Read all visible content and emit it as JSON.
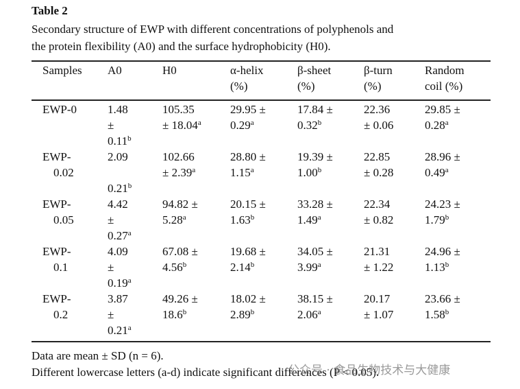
{
  "table_label": "Table 2",
  "caption": [
    "Secondary structure of EWP with different concentrations of polyphenols and",
    "the protein flexibility (A0) and the surface hydrophobicity (H0)."
  ],
  "table": {
    "header": [
      [
        "Samples"
      ],
      [
        "A0"
      ],
      [
        "H0"
      ],
      [
        "α-helix",
        "(%)"
      ],
      [
        "β-sheet",
        "(%)"
      ],
      [
        "β-turn",
        "(%)"
      ],
      [
        "Random",
        "coil (%)"
      ]
    ],
    "rows": [
      [
        {
          "lines": [
            "EWP-0"
          ]
        },
        {
          "lines": [
            "1.48",
            "±",
            "0.11"
          ],
          "sup": "b"
        },
        {
          "lines": [
            "105.35",
            "± 18.04"
          ],
          "sup": "a"
        },
        {
          "lines": [
            "29.95 ±",
            "0.29"
          ],
          "sup": "a"
        },
        {
          "lines": [
            "17.84 ±",
            "0.32"
          ],
          "sup": "b"
        },
        {
          "lines": [
            "22.36",
            "± 0.06"
          ]
        },
        {
          "lines": [
            "29.85 ±",
            "0.28"
          ],
          "sup": "a"
        }
      ],
      [
        {
          "lines": [
            "EWP-",
            "0.02"
          ]
        },
        {
          "lines": [
            "2.09",
            "0.21"
          ],
          "sup": "b"
        },
        {
          "lines": [
            "102.66",
            "± 2.39"
          ],
          "sup": "a"
        },
        {
          "lines": [
            "28.80 ±",
            "1.15"
          ],
          "sup": "a"
        },
        {
          "lines": [
            "19.39 ±",
            "1.00"
          ],
          "sup": "b"
        },
        {
          "lines": [
            "22.85",
            "± 0.28"
          ]
        },
        {
          "lines": [
            "28.96 ±",
            "0.49"
          ],
          "sup": "a"
        }
      ],
      [
        {
          "lines": [
            "EWP-",
            "0.05"
          ]
        },
        {
          "lines": [
            "4.42",
            "±",
            "0.27"
          ],
          "sup": "a"
        },
        {
          "lines": [
            "94.82 ±",
            "5.28"
          ],
          "sup": "a"
        },
        {
          "lines": [
            "20.15 ±",
            "1.63"
          ],
          "sup": "b"
        },
        {
          "lines": [
            "33.28 ±",
            "1.49"
          ],
          "sup": "a"
        },
        {
          "lines": [
            "22.34",
            "± 0.82"
          ]
        },
        {
          "lines": [
            "24.23 ±",
            "1.79"
          ],
          "sup": "b"
        }
      ],
      [
        {
          "lines": [
            "EWP-",
            "0.1"
          ]
        },
        {
          "lines": [
            "4.09",
            "±",
            "0.19"
          ],
          "sup": "a"
        },
        {
          "lines": [
            "67.08 ±",
            "4.56"
          ],
          "sup": "b"
        },
        {
          "lines": [
            "19.68 ±",
            "2.14"
          ],
          "sup": "b"
        },
        {
          "lines": [
            "34.05 ±",
            "3.99"
          ],
          "sup": "a"
        },
        {
          "lines": [
            "21.31",
            "± 1.22"
          ]
        },
        {
          "lines": [
            "24.96 ±",
            "1.13"
          ],
          "sup": "b"
        }
      ],
      [
        {
          "lines": [
            "EWP-",
            "0.2"
          ]
        },
        {
          "lines": [
            "3.87",
            "±",
            "0.21"
          ],
          "sup": "a"
        },
        {
          "lines": [
            "49.26 ±",
            "18.6"
          ],
          "sup": "b"
        },
        {
          "lines": [
            "18.02 ±",
            "2.89"
          ],
          "sup": "b"
        },
        {
          "lines": [
            "38.15 ±",
            "2.06"
          ],
          "sup": "a"
        },
        {
          "lines": [
            "20.17",
            "± 1.07"
          ]
        },
        {
          "lines": [
            "23.66 ±",
            "1.58"
          ],
          "sup": "b"
        }
      ]
    ]
  },
  "footnotes": [
    "Data are mean ± SD (n = 6).",
    "Different lowercase letters (a-d) indicate significant differences (P < 0.05)."
  ],
  "watermark": "公众号 · 食品生物技术与大健康"
}
